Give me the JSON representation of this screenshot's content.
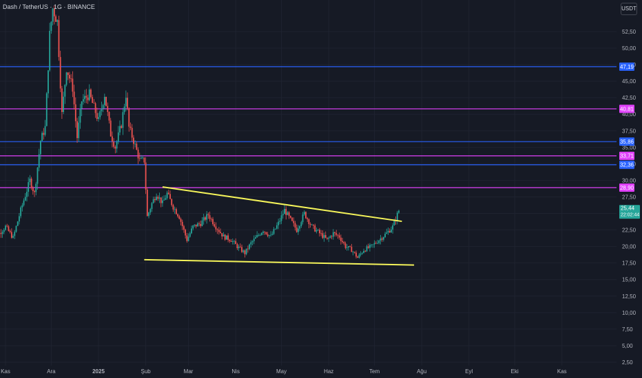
{
  "header": {
    "symbol_label": "Dash / TetherUS · 1G · BINANCE",
    "currency_button": "USDT"
  },
  "colors": {
    "background": "#161a25",
    "grid": "#1f2330",
    "axis_text": "#b2b5be",
    "up": "#26a69a",
    "down": "#ef5350",
    "blue_line": "#2962ff",
    "magenta_line": "#e040fb",
    "trendline": "#f5f45a"
  },
  "chart_data": {
    "type": "candlestick",
    "title": "Dash / TetherUS · 1G · BINANCE",
    "xlabel": "",
    "ylabel": "",
    "ylim": [
      0.5,
      55.5
    ],
    "y_ticks": [
      "2,50",
      "5,00",
      "7,50",
      "10,00",
      "12,50",
      "15,00",
      "17,50",
      "20,00",
      "22,50",
      "25,00",
      "27,50",
      "30,00",
      "32,50",
      "35,00",
      "37,50",
      "40,00",
      "42,50",
      "45,00",
      "47,50",
      "50,00",
      "52,50"
    ],
    "x_ticks": [
      "Kas",
      "Ara",
      "2025",
      "Şub",
      "Mar",
      "Nis",
      "May",
      "Haz",
      "Tem",
      "Ağu",
      "Eyl",
      "Eki",
      "Kas"
    ],
    "x_tick_dates": [
      "2024-11-01",
      "2024-12-01",
      "2025-01-01",
      "2025-02-01",
      "2025-03-01",
      "2025-04-01",
      "2025-05-01",
      "2025-06-01",
      "2025-07-01",
      "2025-08-01",
      "2025-09-01",
      "2025-10-01",
      "2025-11-01"
    ],
    "grid": true,
    "horizontal_levels": [
      {
        "value": 47.19,
        "label": "47,19",
        "kind": "blue"
      },
      {
        "value": 40.81,
        "label": "40,81",
        "kind": "magenta"
      },
      {
        "value": 35.86,
        "label": "35,86",
        "kind": "blue"
      },
      {
        "value": 33.71,
        "label": "33,71",
        "kind": "magenta"
      },
      {
        "value": 32.36,
        "label": "32,36",
        "kind": "blue"
      },
      {
        "value": 28.9,
        "label": "28,90",
        "kind": "magenta"
      }
    ],
    "trendlines": [
      {
        "from": [
          "2025-02-12",
          29.0
        ],
        "to": [
          "2025-07-19",
          23.8
        ]
      },
      {
        "from": [
          "2025-01-31",
          18.0
        ],
        "to": [
          "2025-07-27",
          17.2
        ]
      }
    ],
    "last_price": {
      "value": 25.44,
      "label": "25,44",
      "countdown": "22:02:44"
    },
    "keypoints": [
      [
        "2024-10-22",
        24.0
      ],
      [
        "2024-10-29",
        22.0
      ],
      [
        "2024-11-02",
        23.0
      ],
      [
        "2024-11-07",
        21.3
      ],
      [
        "2024-11-12",
        25.5
      ],
      [
        "2024-11-18",
        30.0
      ],
      [
        "2024-11-21",
        28.0
      ],
      [
        "2024-11-25",
        36.0
      ],
      [
        "2024-11-28",
        38.0
      ],
      [
        "2024-12-01",
        52.0
      ],
      [
        "2024-12-03",
        56.0
      ],
      [
        "2024-12-06",
        54.0
      ],
      [
        "2024-12-09",
        40.0
      ],
      [
        "2024-12-12",
        47.0
      ],
      [
        "2024-12-16",
        44.0
      ],
      [
        "2024-12-19",
        36.5
      ],
      [
        "2024-12-22",
        42.0
      ],
      [
        "2024-12-27",
        43.0
      ],
      [
        "2025-01-02",
        39.0
      ],
      [
        "2025-01-06",
        43.0
      ],
      [
        "2025-01-10",
        37.0
      ],
      [
        "2025-01-13",
        35.0
      ],
      [
        "2025-01-17",
        38.5
      ],
      [
        "2025-01-20",
        43.0
      ],
      [
        "2025-01-22",
        38.0
      ],
      [
        "2025-01-25",
        36.0
      ],
      [
        "2025-01-29",
        33.0
      ],
      [
        "2025-02-01",
        33.0
      ],
      [
        "2025-02-03",
        24.5
      ],
      [
        "2025-02-06",
        26.5
      ],
      [
        "2025-02-09",
        28.0
      ],
      [
        "2025-02-13",
        26.5
      ],
      [
        "2025-02-16",
        28.0
      ],
      [
        "2025-02-20",
        26.0
      ],
      [
        "2025-02-24",
        24.5
      ],
      [
        "2025-03-01",
        21.0
      ],
      [
        "2025-03-05",
        23.0
      ],
      [
        "2025-03-10",
        23.5
      ],
      [
        "2025-03-15",
        24.8
      ],
      [
        "2025-03-20",
        23.0
      ],
      [
        "2025-03-25",
        21.5
      ],
      [
        "2025-03-30",
        21.0
      ],
      [
        "2025-04-03",
        20.0
      ],
      [
        "2025-04-08",
        19.0
      ],
      [
        "2025-04-12",
        20.5
      ],
      [
        "2025-04-16",
        21.5
      ],
      [
        "2025-04-20",
        22.5
      ],
      [
        "2025-04-25",
        21.5
      ],
      [
        "2025-04-30",
        23.5
      ],
      [
        "2025-05-04",
        25.5
      ],
      [
        "2025-05-08",
        24.0
      ],
      [
        "2025-05-12",
        22.5
      ],
      [
        "2025-05-17",
        25.0
      ],
      [
        "2025-05-22",
        23.0
      ],
      [
        "2025-05-27",
        22.0
      ],
      [
        "2025-06-01",
        21.0
      ],
      [
        "2025-06-05",
        22.0
      ],
      [
        "2025-06-09",
        21.5
      ],
      [
        "2025-06-13",
        20.0
      ],
      [
        "2025-06-17",
        19.5
      ],
      [
        "2025-06-21",
        18.3
      ],
      [
        "2025-06-25",
        19.5
      ],
      [
        "2025-06-30",
        20.0
      ],
      [
        "2025-07-05",
        21.0
      ],
      [
        "2025-07-10",
        22.0
      ],
      [
        "2025-07-14",
        23.0
      ],
      [
        "2025-07-18",
        25.44
      ]
    ]
  }
}
